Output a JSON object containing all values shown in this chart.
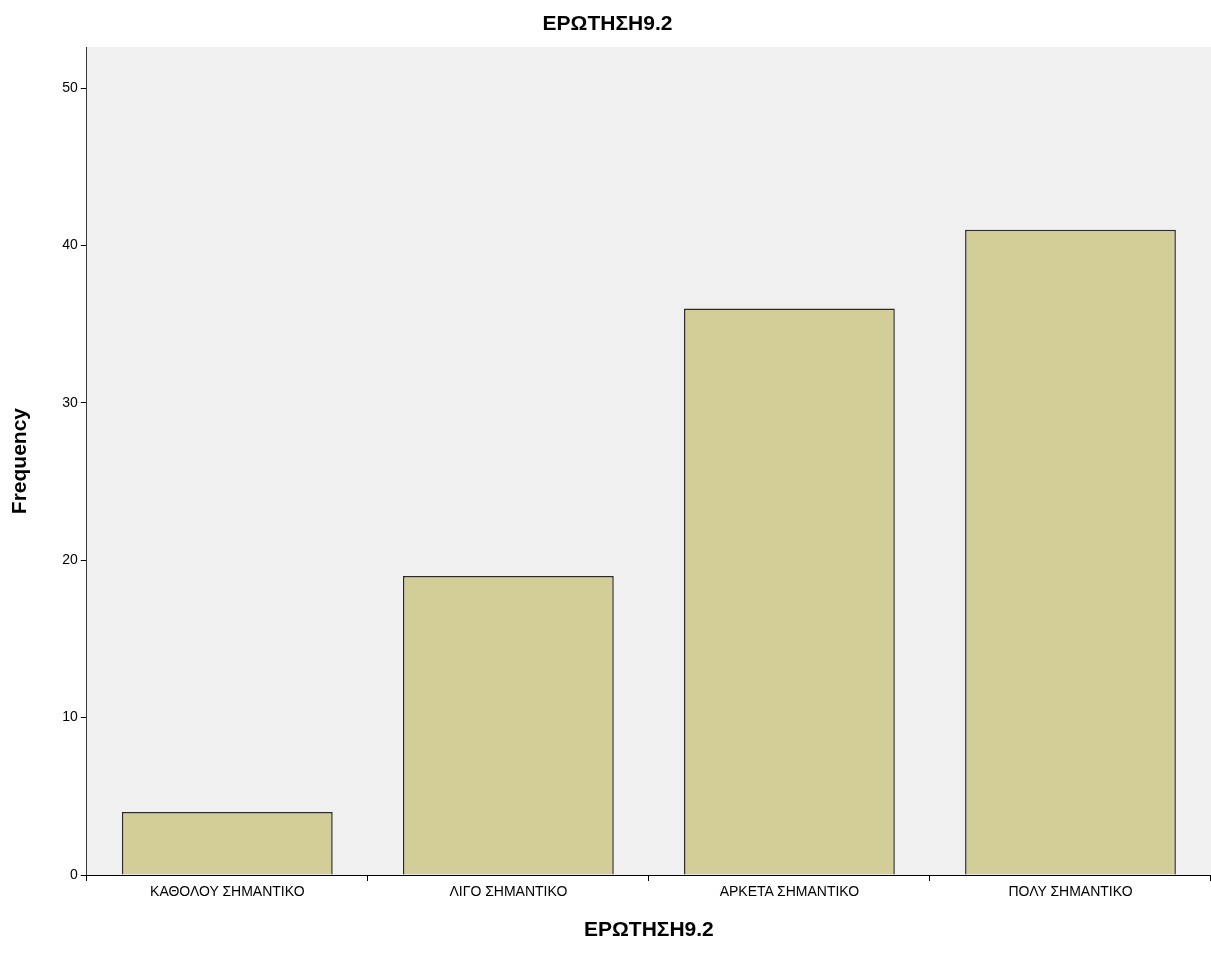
{
  "chart_data": {
    "type": "bar",
    "title": "ΕΡΩΤΗΣΗ9.2",
    "xlabel": "ΕΡΩΤΗΣΗ9.2",
    "ylabel": "Frequency",
    "categories": [
      "ΚΑΘΟΛΟΥ ΣΗΜΑΝΤΙΚΟ",
      "ΛΙΓΟ ΣΗΜΑΝΤΙΚΟ",
      "ΑΡΚΕΤΑ ΣΗΜΑΝΤΙΚΟ",
      "ΠΟΛΥ ΣΗΜΑΝΤΙΚΟ"
    ],
    "values": [
      4,
      19,
      36,
      41
    ],
    "color": "#d3ce97",
    "ylim": [
      0,
      52.6
    ],
    "yticks": [
      0,
      10,
      20,
      30,
      40,
      50
    ],
    "grid": false,
    "legend": false
  }
}
